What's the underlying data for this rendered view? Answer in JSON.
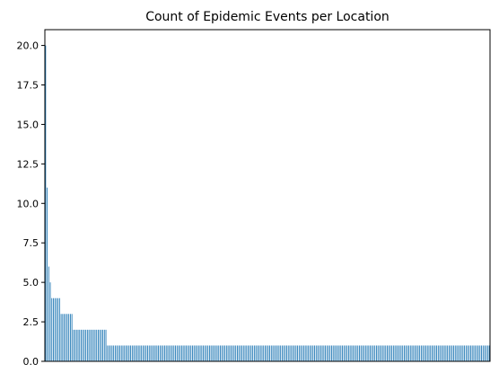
{
  "chart_data": {
    "type": "bar",
    "title": "Count of Epidemic Events per Location",
    "xlabel": "",
    "ylabel": "",
    "ylim": [
      0,
      21
    ],
    "yticks": [
      0.0,
      2.5,
      5.0,
      7.5,
      10.0,
      12.5,
      15.0,
      17.5,
      20.0
    ],
    "ytick_labels": [
      "0.0",
      "2.5",
      "5.0",
      "7.5",
      "10.0",
      "12.5",
      "15.0",
      "17.5",
      "20.0"
    ],
    "grid": false,
    "legend": "none",
    "bar_color": "#1f77b4",
    "x_tick_labels_visible": false,
    "values": [
      20,
      11,
      6,
      5,
      4,
      4,
      4,
      4,
      4,
      4,
      3,
      3,
      3,
      3,
      3,
      3,
      3,
      3,
      2,
      2,
      2,
      2,
      2,
      2,
      2,
      2,
      2,
      2,
      2,
      2,
      2,
      2,
      2,
      2,
      2,
      2,
      2,
      2,
      2,
      2,
      1,
      1,
      1,
      1,
      1,
      1,
      1,
      1,
      1,
      1,
      1,
      1,
      1,
      1,
      1,
      1,
      1,
      1,
      1,
      1,
      1,
      1,
      1,
      1,
      1,
      1,
      1,
      1,
      1,
      1,
      1,
      1,
      1,
      1,
      1,
      1,
      1,
      1,
      1,
      1,
      1,
      1,
      1,
      1,
      1,
      1,
      1,
      1,
      1,
      1,
      1,
      1,
      1,
      1,
      1,
      1,
      1,
      1,
      1,
      1,
      1,
      1,
      1,
      1,
      1,
      1,
      1,
      1,
      1,
      1,
      1,
      1,
      1,
      1,
      1,
      1,
      1,
      1,
      1,
      1,
      1,
      1,
      1,
      1,
      1,
      1,
      1,
      1,
      1,
      1,
      1,
      1,
      1,
      1,
      1,
      1,
      1,
      1,
      1,
      1,
      1,
      1,
      1,
      1,
      1,
      1,
      1,
      1,
      1,
      1,
      1,
      1,
      1,
      1,
      1,
      1,
      1,
      1,
      1,
      1,
      1,
      1,
      1,
      1,
      1,
      1,
      1,
      1,
      1,
      1,
      1,
      1,
      1,
      1,
      1,
      1,
      1,
      1,
      1,
      1,
      1,
      1,
      1,
      1,
      1,
      1,
      1,
      1,
      1,
      1,
      1,
      1,
      1,
      1,
      1,
      1,
      1,
      1,
      1,
      1,
      1,
      1,
      1,
      1,
      1,
      1,
      1,
      1,
      1,
      1,
      1,
      1,
      1,
      1,
      1,
      1,
      1,
      1,
      1,
      1,
      1,
      1,
      1,
      1,
      1,
      1,
      1,
      1,
      1,
      1,
      1,
      1,
      1,
      1,
      1,
      1,
      1,
      1,
      1,
      1,
      1,
      1,
      1,
      1,
      1,
      1,
      1,
      1,
      1,
      1,
      1,
      1,
      1,
      1,
      1,
      1,
      1,
      1,
      1,
      1,
      1,
      1,
      1,
      1,
      1,
      1,
      1,
      1,
      1,
      1,
      1,
      1,
      1,
      1,
      1,
      1,
      1,
      1,
      1,
      1,
      1,
      1,
      1,
      1,
      1,
      1,
      1,
      1
    ]
  }
}
